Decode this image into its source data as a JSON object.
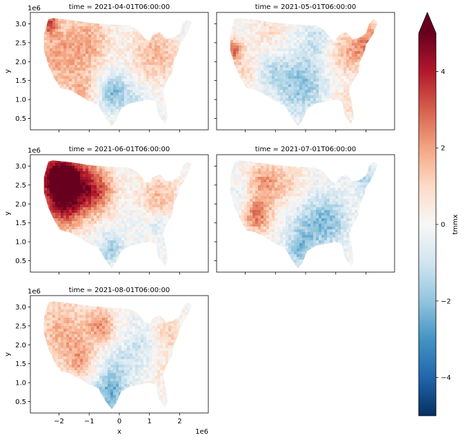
{
  "chart_data": {
    "type": "heatmap",
    "variable": "tmmx",
    "xlabel": "x",
    "ylabel": "y",
    "x_offset_label": "1e6",
    "y_offset_label": "1e6",
    "xlim": [
      -2.95,
      2.95
    ],
    "ylim": [
      0.2,
      3.3
    ],
    "x_ticks": [
      -2,
      -1,
      0,
      1,
      2
    ],
    "x_tick_labels": [
      "−2",
      "−1",
      "0",
      "1",
      "2"
    ],
    "y_ticks": [
      0.5,
      1.0,
      1.5,
      2.0,
      2.5,
      3.0
    ],
    "y_tick_labels": [
      "0.5",
      "1.0",
      "1.5",
      "2.0",
      "2.5",
      "3.0"
    ],
    "colorbar": {
      "label": "tmmx",
      "range": [
        -5,
        5
      ],
      "extend": "max",
      "colormap": "RdBu_r",
      "ticks": [
        -4,
        -2,
        0,
        2,
        4
      ],
      "tick_labels": [
        "−4",
        "−2",
        "0",
        "2",
        "4"
      ]
    },
    "panels": [
      {
        "title": "time = 2021-04-01T06:00:00",
        "anomalies": [
          {
            "x": -1.9,
            "y": 2.2,
            "r": 1.1,
            "v": 1.9
          },
          {
            "x": -0.9,
            "y": 2.6,
            "r": 0.6,
            "v": 1.2
          },
          {
            "x": 1.2,
            "y": 2.2,
            "r": 0.8,
            "v": 1.6
          },
          {
            "x": -0.2,
            "y": 1.2,
            "r": 0.5,
            "v": -2.2
          },
          {
            "x": 0.6,
            "y": 1.0,
            "r": 0.5,
            "v": -0.8
          },
          {
            "x": 2.2,
            "y": 2.6,
            "r": 0.3,
            "v": -0.5
          },
          {
            "x": -2.3,
            "y": 3.0,
            "r": 0.25,
            "v": 2.6
          },
          {
            "x": -1.2,
            "y": 1.2,
            "r": 0.5,
            "v": 1.0
          }
        ]
      },
      {
        "title": "time = 2021-05-01T06:00:00",
        "anomalies": [
          {
            "x": -2.4,
            "y": 2.3,
            "r": 0.3,
            "v": 2.8
          },
          {
            "x": -2.0,
            "y": 1.8,
            "r": 0.5,
            "v": 0.9
          },
          {
            "x": 2.1,
            "y": 2.5,
            "r": 0.6,
            "v": 2.3
          },
          {
            "x": 1.3,
            "y": 2.2,
            "r": 0.6,
            "v": 1.4
          },
          {
            "x": -0.1,
            "y": 1.4,
            "r": 0.8,
            "v": -2.0
          },
          {
            "x": -1.1,
            "y": 1.7,
            "r": 0.5,
            "v": -1.1
          },
          {
            "x": 0.4,
            "y": 2.6,
            "r": 0.5,
            "v": -1.0
          },
          {
            "x": 1.2,
            "y": 0.8,
            "r": 0.5,
            "v": 0.9
          },
          {
            "x": -1.2,
            "y": 2.8,
            "r": 0.5,
            "v": 0.8
          }
        ]
      },
      {
        "title": "time = 2021-06-01T06:00:00",
        "anomalies": [
          {
            "x": -2.1,
            "y": 2.7,
            "r": 0.7,
            "v": 4.6
          },
          {
            "x": -1.4,
            "y": 2.5,
            "r": 0.8,
            "v": 3.3
          },
          {
            "x": -1.9,
            "y": 1.8,
            "r": 0.6,
            "v": 2.4
          },
          {
            "x": -0.7,
            "y": 2.3,
            "r": 0.6,
            "v": 2.0
          },
          {
            "x": 1.3,
            "y": 2.1,
            "r": 0.7,
            "v": 1.6
          },
          {
            "x": 1.3,
            "y": 1.5,
            "r": 0.4,
            "v": -1.2
          },
          {
            "x": -0.3,
            "y": 0.8,
            "r": 0.4,
            "v": -1.8
          },
          {
            "x": 0.5,
            "y": 1.6,
            "r": 0.5,
            "v": -0.4
          }
        ]
      },
      {
        "title": "time = 2021-07-01T06:00:00",
        "anomalies": [
          {
            "x": -1.6,
            "y": 1.7,
            "r": 0.5,
            "v": 2.6
          },
          {
            "x": -1.4,
            "y": 2.6,
            "r": 0.5,
            "v": 1.9
          },
          {
            "x": -0.6,
            "y": 2.5,
            "r": 0.6,
            "v": 1.2
          },
          {
            "x": -2.2,
            "y": 2.2,
            "r": 0.4,
            "v": -0.6
          },
          {
            "x": 0.2,
            "y": 1.4,
            "r": 0.8,
            "v": -1.7
          },
          {
            "x": 0.9,
            "y": 1.6,
            "r": 0.6,
            "v": -1.2
          },
          {
            "x": 2.0,
            "y": 2.6,
            "r": 0.4,
            "v": -1.4
          },
          {
            "x": -0.2,
            "y": 0.8,
            "r": 0.4,
            "v": -1.5
          }
        ]
      },
      {
        "title": "time = 2021-08-01T06:00:00",
        "anomalies": [
          {
            "x": -1.9,
            "y": 2.4,
            "r": 0.9,
            "v": 1.7
          },
          {
            "x": -0.6,
            "y": 2.5,
            "r": 0.5,
            "v": 2.0
          },
          {
            "x": -1.3,
            "y": 1.6,
            "r": 0.5,
            "v": 1.6
          },
          {
            "x": 0.7,
            "y": 2.0,
            "r": 0.6,
            "v": -0.9
          },
          {
            "x": 1.6,
            "y": 2.3,
            "r": 0.5,
            "v": 1.2
          },
          {
            "x": -0.3,
            "y": 0.7,
            "r": 0.5,
            "v": -2.3
          },
          {
            "x": -0.1,
            "y": 1.4,
            "r": 0.6,
            "v": -1.0
          },
          {
            "x": 1.4,
            "y": 1.4,
            "r": 0.4,
            "v": 0.6
          }
        ]
      }
    ]
  }
}
